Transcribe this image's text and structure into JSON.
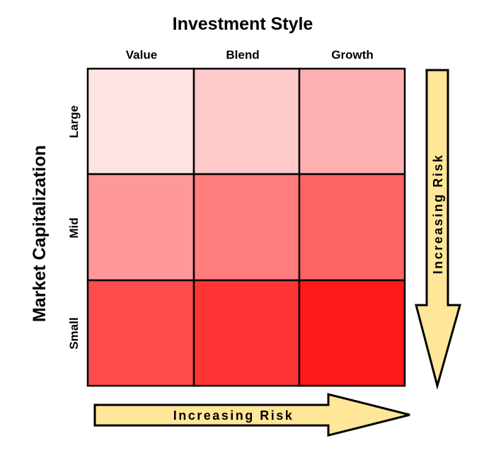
{
  "title": "Investment Style",
  "y_axis_title": "Market Capitalization",
  "columns": [
    "Value",
    "Blend",
    "Growth"
  ],
  "rows": [
    "Large",
    "Mid",
    "Small"
  ],
  "cell_colors": [
    [
      "#ffe3e3",
      "#ffcaca",
      "#ffb0b0"
    ],
    [
      "#ff9898",
      "#ff7d7d",
      "#ff6464"
    ],
    [
      "#ff4c4c",
      "#ff3535",
      "#ff1a1a"
    ]
  ],
  "horizontal_arrow": {
    "label": "Increasing Risk",
    "color": "#ffe699"
  },
  "vertical_arrow": {
    "label": "Increasing Risk",
    "color": "#ffe699"
  }
}
